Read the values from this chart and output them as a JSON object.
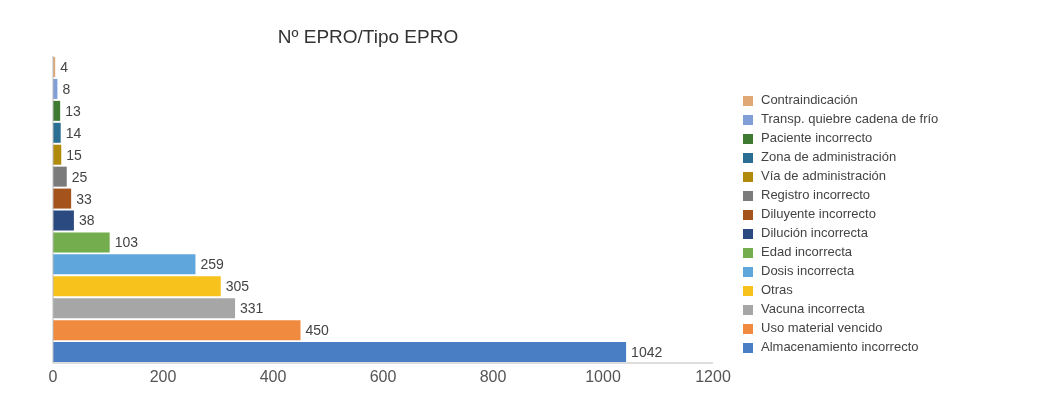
{
  "chart_data": {
    "type": "bar",
    "orientation": "horizontal",
    "title": "Nº EPRO/Tipo EPRO",
    "stacked": true,
    "categories": [
      null,
      null,
      null,
      null,
      null,
      null,
      null,
      null,
      null,
      null,
      null,
      null,
      null,
      null
    ],
    "series": [
      {
        "name": "Contraindicación",
        "color": "#e0a875",
        "values": [
          4,
          null,
          null,
          null,
          null,
          null,
          null,
          null,
          null,
          null,
          null,
          null,
          null,
          null
        ]
      },
      {
        "name": "Transp. quiebre cadena de frío",
        "color": "#7f9fd6",
        "values": [
          null,
          8,
          null,
          null,
          null,
          null,
          null,
          null,
          null,
          null,
          null,
          null,
          null,
          null
        ]
      },
      {
        "name": "Paciente incorrecto",
        "color": "#3f7a33",
        "values": [
          null,
          null,
          13,
          null,
          null,
          null,
          null,
          null,
          null,
          null,
          null,
          null,
          null,
          null
        ]
      },
      {
        "name": "Zona de administración",
        "color": "#2a6f93",
        "values": [
          null,
          null,
          null,
          14,
          null,
          null,
          null,
          null,
          null,
          null,
          null,
          null,
          null,
          null
        ]
      },
      {
        "name": "Vía de administración",
        "color": "#b08a0a",
        "values": [
          null,
          null,
          null,
          null,
          15,
          null,
          null,
          null,
          null,
          null,
          null,
          null,
          null,
          null
        ]
      },
      {
        "name": "Registro incorrecto",
        "color": "#7b7b7b",
        "values": [
          null,
          null,
          null,
          null,
          null,
          25,
          null,
          null,
          null,
          null,
          null,
          null,
          null,
          null
        ]
      },
      {
        "name": "Diluyente incorrecto",
        "color": "#a5531c",
        "values": [
          null,
          null,
          null,
          null,
          null,
          null,
          33,
          null,
          null,
          null,
          null,
          null,
          null,
          null
        ]
      },
      {
        "name": "Dilución incorrecta",
        "color": "#2a4a80",
        "values": [
          null,
          null,
          null,
          null,
          null,
          null,
          null,
          38,
          null,
          null,
          null,
          null,
          null,
          null
        ]
      },
      {
        "name": "Edad incorrecta",
        "color": "#73ad4d",
        "values": [
          null,
          null,
          null,
          null,
          null,
          null,
          null,
          null,
          103,
          null,
          null,
          null,
          null,
          null
        ]
      },
      {
        "name": "Dosis incorrecta",
        "color": "#5ea6dc",
        "values": [
          null,
          null,
          null,
          null,
          null,
          null,
          null,
          null,
          null,
          259,
          null,
          null,
          null,
          null
        ]
      },
      {
        "name": "Otras",
        "color": "#f6c21b",
        "values": [
          null,
          null,
          null,
          null,
          null,
          null,
          null,
          null,
          null,
          null,
          305,
          null,
          null,
          null
        ]
      },
      {
        "name": "Vacuna incorrecta",
        "color": "#a6a6a6",
        "values": [
          null,
          null,
          null,
          null,
          null,
          null,
          null,
          null,
          null,
          null,
          null,
          331,
          null,
          null
        ]
      },
      {
        "name": "Uso material vencido",
        "color": "#ef8a3f",
        "values": [
          null,
          null,
          null,
          null,
          null,
          null,
          null,
          null,
          null,
          null,
          null,
          null,
          450,
          null
        ]
      },
      {
        "name": "Almacenamiento incorrecto",
        "color": "#4a7ec4",
        "values": [
          null,
          null,
          null,
          null,
          null,
          null,
          null,
          null,
          null,
          null,
          null,
          null,
          null,
          1042
        ]
      }
    ],
    "xlim": [
      0,
      1200
    ],
    "xticks": [
      0,
      200,
      400,
      600,
      800,
      1000,
      1200
    ],
    "data_labels": true,
    "legend": "right",
    "tick_labels": "x",
    "grid": false
  }
}
